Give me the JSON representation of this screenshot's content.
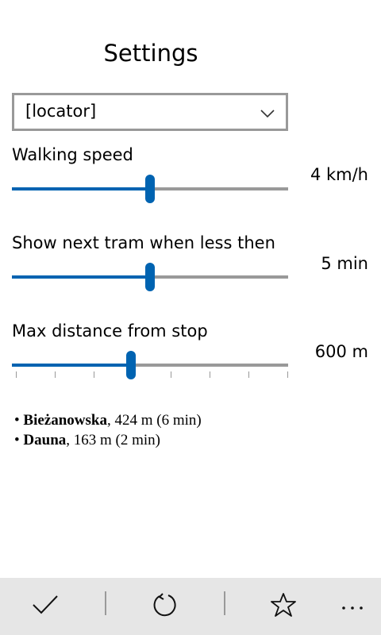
{
  "page": {
    "title": "Settings"
  },
  "locator": {
    "selected": "[locator]"
  },
  "walking": {
    "label": "Walking speed",
    "value": "4 km/h",
    "fraction": 0.5
  },
  "tram": {
    "label": "Show next tram when less then",
    "value": "5 min",
    "fraction": 0.5
  },
  "distance": {
    "label": "Max distance from stop",
    "value": "600 m",
    "fraction": 0.43,
    "tick_count": 8
  },
  "stops": [
    {
      "name": "Bieżanowska",
      "detail": ", 424 m (6 min)"
    },
    {
      "name": "Dauna",
      "detail": ", 163 m (2 min)"
    }
  ],
  "appbar": {
    "icons": [
      "check-icon",
      "refresh-icon",
      "star-icon",
      "more-icon"
    ]
  },
  "colors": {
    "accent": "#0063b1",
    "track": "#999999",
    "appbar_bg": "#e6e6e6"
  }
}
